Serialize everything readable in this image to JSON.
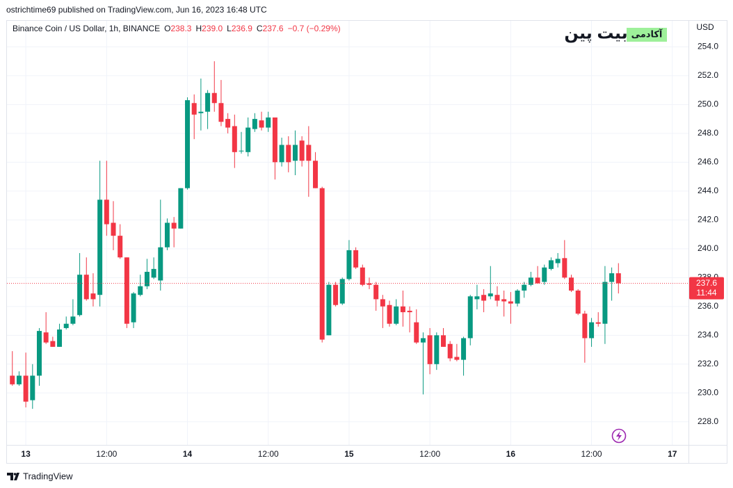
{
  "header": {
    "published": "ostrichtime69 published on TradingView.com, Jun 16, 2023 16:48 UTC"
  },
  "footer": {
    "brand": "TradingView"
  },
  "watermark": {
    "brand": "بیت پین",
    "tag": "آکادمی"
  },
  "chart_data": {
    "type": "candlestick",
    "legend": {
      "name": "Binance Coin / US Dollar, 1h, BINANCE",
      "o_key": "O",
      "o": "238.3",
      "h_key": "H",
      "h": "239.0",
      "l_key": "L",
      "l": "236.9",
      "c_key": "C",
      "c": "237.6",
      "change": "−0.7 (−0.29%)"
    },
    "currency": "USD",
    "up_color": "#089981",
    "down_color": "#f23645",
    "last_price": 237.6,
    "countdown": "11:44",
    "x": [
      -2,
      -1,
      0,
      1,
      2,
      3,
      4,
      5,
      6,
      7,
      8,
      9,
      10,
      11,
      12,
      13,
      14,
      15,
      16,
      17,
      18,
      19,
      20,
      21,
      22,
      23,
      24,
      25,
      26,
      27,
      28,
      29,
      30,
      31,
      32,
      33,
      34,
      35,
      36,
      37,
      38,
      39,
      40,
      41,
      42,
      43,
      44,
      45,
      46,
      47,
      48,
      49,
      50,
      51,
      52,
      53,
      54,
      55,
      56,
      57,
      58,
      59,
      60,
      61,
      62,
      63,
      64,
      65,
      66,
      67,
      68,
      69,
      70,
      71,
      72,
      73,
      74,
      75,
      76,
      77,
      78,
      79,
      80,
      81,
      82,
      83,
      84,
      85,
      86,
      87,
      88
    ],
    "open": [
      231.2,
      230.6,
      231.2,
      229.5,
      231.2,
      234.2,
      233.6,
      233.2,
      234.5,
      234.8,
      235.4,
      238.2,
      236.9,
      236.8,
      243.4,
      241.8,
      240.9,
      239.4,
      234.9,
      236.8,
      237.4,
      238.0,
      237.8,
      240.1,
      241.8,
      241.4,
      244.2,
      250.1,
      249.4,
      249.5,
      250.8,
      250.1,
      249.0,
      248.5,
      246.75,
      246.7,
      248.3,
      248.9,
      248.4,
      249.1,
      246.0,
      247.2,
      246.1,
      247.5,
      247.2,
      246.1,
      244.2,
      234.0,
      237.5,
      236.2,
      237.9,
      239.9,
      238.7,
      237.6,
      237.5,
      236.5,
      236.1,
      234.8,
      236.0,
      235.7,
      234.9,
      233.5,
      234.0,
      232.0,
      234.0,
      233.4,
      232.5,
      232.3,
      233.8,
      236.5,
      236.8,
      236.7,
      236.8,
      236.5,
      236.35,
      236.2,
      237.1,
      237.5,
      238.0,
      237.7,
      238.6,
      239.0,
      239.35,
      238.0,
      237.1,
      235.5,
      233.8,
      234.9,
      234.8,
      237.7,
      238.3
    ],
    "high": [
      232.9,
      231.5,
      232.8,
      232.0,
      234.5,
      235.6,
      233.9,
      234.8,
      235.3,
      236.5,
      239.7,
      239.4,
      238.3,
      246.1,
      246.1,
      243.3,
      241.7,
      239.4,
      237.0,
      238.2,
      239.3,
      239.4,
      243.4,
      242.1,
      242.2,
      244.2,
      250.5,
      250.7,
      251.8,
      251.0,
      253.0,
      251.7,
      249.4,
      249.3,
      248.1,
      249.1,
      249.4,
      249.5,
      249.5,
      249.1,
      247.7,
      247.8,
      248.2,
      247.8,
      248.5,
      246.7,
      244.3,
      237.7,
      237.7,
      238.0,
      240.6,
      240.1,
      238.9,
      238.0,
      237.7,
      236.8,
      236.4,
      236.5,
      237.1,
      236.0,
      235.8,
      234.2,
      234.5,
      234.2,
      234.5,
      233.6,
      233.4,
      233.9,
      236.8,
      237.5,
      237.2,
      238.8,
      237.4,
      237.1,
      237.0,
      237.2,
      237.7,
      238.4,
      238.8,
      238.9,
      239.4,
      239.7,
      240.6,
      238.2,
      237.2,
      235.7,
      235.2,
      235.6,
      238.8,
      238.7,
      239.0
    ],
    "low": [
      230.5,
      230.5,
      229.0,
      228.9,
      230.5,
      233.4,
      233.2,
      233.2,
      234.4,
      234.7,
      235.3,
      236.4,
      236.0,
      236.0,
      240.9,
      239.9,
      239.3,
      234.5,
      234.5,
      236.7,
      237.2,
      237.9,
      237.1,
      239.9,
      240.1,
      241.4,
      244.1,
      247.6,
      248.2,
      248.3,
      249.5,
      248.5,
      248.0,
      245.6,
      246.6,
      246.4,
      248.1,
      248.2,
      248.1,
      244.8,
      245.7,
      245.3,
      245.1,
      245.7,
      243.6,
      244.2,
      233.5,
      234.0,
      236.0,
      236.1,
      237.8,
      238.6,
      237.4,
      237.2,
      235.7,
      234.5,
      234.6,
      234.7,
      234.6,
      234.2,
      233.4,
      229.9,
      231.3,
      231.6,
      233.2,
      232.2,
      232.2,
      231.2,
      233.3,
      235.8,
      235.6,
      236.5,
      236.0,
      235.3,
      234.8,
      236.0,
      236.6,
      237.4,
      237.6,
      237.5,
      238.5,
      238.7,
      237.9,
      237.0,
      235.4,
      232.1,
      233.2,
      234.6,
      233.4,
      236.4,
      236.9
    ],
    "close": [
      230.6,
      231.2,
      229.4,
      231.2,
      234.3,
      233.5,
      233.2,
      234.4,
      234.8,
      235.3,
      238.2,
      236.5,
      236.5,
      243.4,
      241.7,
      240.9,
      239.4,
      234.8,
      236.9,
      237.4,
      238.4,
      238.6,
      240.1,
      241.8,
      241.4,
      244.2,
      250.3,
      249.3,
      249.5,
      250.8,
      250.1,
      248.8,
      248.4,
      246.7,
      246.8,
      248.4,
      249.0,
      248.4,
      249.1,
      246.0,
      247.2,
      246.0,
      247.2,
      246.1,
      246.1,
      244.2,
      233.7,
      237.5,
      236.1,
      237.9,
      239.9,
      238.7,
      237.5,
      237.5,
      236.5,
      236.0,
      234.8,
      236.0,
      235.6,
      235.6,
      233.5,
      233.8,
      232.0,
      234.0,
      233.2,
      232.4,
      232.3,
      233.8,
      236.7,
      236.7,
      236.4,
      236.9,
      236.4,
      236.35,
      236.2,
      237.1,
      237.5,
      238.0,
      237.6,
      238.7,
      239.2,
      239.3,
      238.0,
      237.1,
      235.5,
      233.8,
      234.9,
      234.8,
      237.7,
      238.3,
      237.6
    ],
    "xlim": [
      -2.8,
      98.4
    ],
    "xticks": [
      {
        "value": 0,
        "label": "13"
      },
      {
        "value": 12,
        "label": "12:00"
      },
      {
        "value": 24,
        "label": "14"
      },
      {
        "value": 36,
        "label": "12:00"
      },
      {
        "value": 48,
        "label": "15"
      },
      {
        "value": 60,
        "label": "12:00"
      },
      {
        "value": 72,
        "label": "16"
      },
      {
        "value": 84,
        "label": "12:00"
      },
      {
        "value": 96,
        "label": "17"
      }
    ],
    "ylim": [
      226.4,
      255.8
    ],
    "yticks": [
      {
        "value": 228,
        "label": "228.0"
      },
      {
        "value": 230,
        "label": "230.0"
      },
      {
        "value": 232,
        "label": "232.0"
      },
      {
        "value": 234,
        "label": "234.0"
      },
      {
        "value": 236,
        "label": "236.0"
      },
      {
        "value": 238,
        "label": "238.0"
      },
      {
        "value": 240,
        "label": "240.0"
      },
      {
        "value": 242,
        "label": "242.0"
      },
      {
        "value": 244,
        "label": "244.0"
      },
      {
        "value": 246,
        "label": "246.0"
      },
      {
        "value": 248,
        "label": "248.0"
      },
      {
        "value": 250,
        "label": "250.0"
      },
      {
        "value": 252,
        "label": "252.0"
      },
      {
        "value": 254,
        "label": "254.0"
      }
    ],
    "grid": true
  }
}
